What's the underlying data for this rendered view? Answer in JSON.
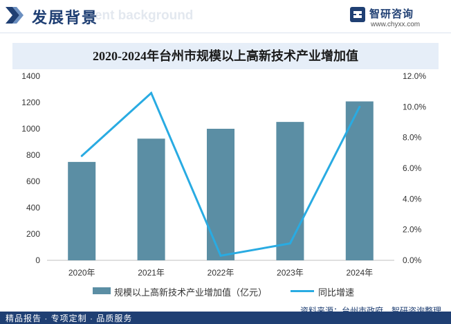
{
  "header": {
    "section_title": "发展背景",
    "ghost_text": "ment background"
  },
  "logo": {
    "name": "智研咨询",
    "url": "www.chyxx.com"
  },
  "chart_data": {
    "type": "bar",
    "title": "2020-2024年台州市规模以上高新技术产业增加值",
    "categories": [
      "2020年",
      "2021年",
      "2022年",
      "2023年",
      "2024年"
    ],
    "series": [
      {
        "name": "规模以上高新技术产业增加值（亿元）",
        "type": "bar",
        "axis": "left",
        "color": "#5b8ea4",
        "values": [
          748,
          925,
          1000,
          1052,
          1208
        ]
      },
      {
        "name": "同比增速",
        "type": "line",
        "axis": "right",
        "color": "#29abe2",
        "values": [
          6.8,
          10.9,
          0.3,
          1.1,
          10.0
        ]
      }
    ],
    "y_left": {
      "min": 0,
      "max": 1400,
      "ticks": [
        "0",
        "200",
        "400",
        "600",
        "800",
        "1000",
        "1200",
        "1400"
      ]
    },
    "y_right": {
      "min": 0,
      "max": 12,
      "ticks": [
        "0.0%",
        "2.0%",
        "4.0%",
        "6.0%",
        "8.0%",
        "10.0%",
        "12.0%"
      ]
    },
    "grid": false,
    "legend": "bottom"
  },
  "footer": {
    "source": "资料来源：台州市政府，智研咨询整理",
    "services": "精品报告 · 专项定制 · 品质服务"
  }
}
